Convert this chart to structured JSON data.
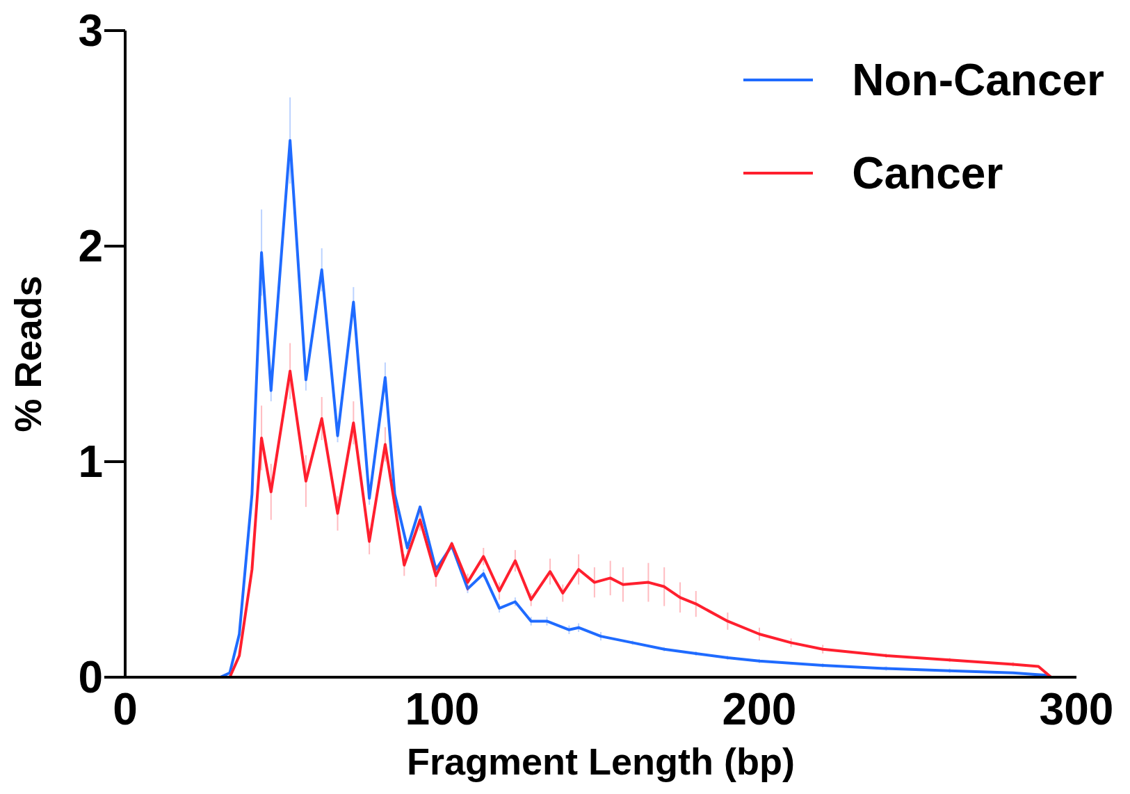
{
  "chart_data": {
    "type": "line",
    "xlabel": "Fragment Length (bp)",
    "ylabel": "% Reads",
    "xlim": [
      0,
      300
    ],
    "xticks": [
      0,
      100,
      200,
      300
    ],
    "ylim": [
      0,
      3
    ],
    "yticks": [
      0,
      1,
      2,
      3
    ],
    "grid": false,
    "legend": "top right",
    "marker": "none",
    "line_style": "solid",
    "series": [
      {
        "name": "Non-Cancer",
        "color": "#1f6bff",
        "x": [
          30,
          33,
          36,
          40,
          43,
          46,
          52,
          57,
          62,
          67,
          72,
          77,
          82,
          85,
          89,
          93,
          98,
          103,
          108,
          113,
          118,
          123,
          128,
          133,
          140,
          143,
          150,
          160,
          170,
          180,
          190,
          200,
          220,
          240,
          260,
          280,
          290,
          292
        ],
        "values": [
          0,
          0.02,
          0.2,
          0.85,
          1.97,
          1.33,
          2.49,
          1.38,
          1.89,
          1.12,
          1.74,
          0.83,
          1.39,
          0.85,
          0.6,
          0.79,
          0.5,
          0.61,
          0.41,
          0.48,
          0.32,
          0.35,
          0.26,
          0.26,
          0.22,
          0.23,
          0.19,
          0.16,
          0.13,
          0.11,
          0.09,
          0.075,
          0.055,
          0.04,
          0.03,
          0.02,
          0.01,
          0
        ],
        "errors": [
          null,
          null,
          null,
          null,
          0.2,
          0.05,
          0.2,
          0.05,
          0.1,
          0.03,
          0.07,
          0.03,
          0.07,
          0.03,
          0.02,
          null,
          0.02,
          0.02,
          0.02,
          0.02,
          0.02,
          0.02,
          0.02,
          0.02,
          0.02,
          0.02,
          0.02,
          0.01,
          0.01,
          0.01,
          0.01,
          0.01,
          0.01,
          0.01,
          0.01,
          null,
          null,
          null
        ]
      },
      {
        "name": "Cancer",
        "color": "#ff1f2e",
        "x": [
          30,
          33,
          36,
          40,
          43,
          46,
          52,
          57,
          62,
          67,
          72,
          77,
          82,
          88,
          93,
          98,
          103,
          108,
          113,
          118,
          123,
          128,
          134,
          138,
          143,
          148,
          153,
          157,
          165,
          170,
          175,
          180,
          190,
          200,
          210,
          220,
          240,
          260,
          280,
          288,
          292
        ],
        "values": [
          0,
          0,
          0.1,
          0.5,
          1.11,
          0.86,
          1.42,
          0.91,
          1.2,
          0.76,
          1.18,
          0.63,
          1.08,
          0.52,
          0.73,
          0.47,
          0.62,
          0.44,
          0.56,
          0.4,
          0.54,
          0.36,
          0.49,
          0.39,
          0.5,
          0.44,
          0.46,
          0.43,
          0.44,
          0.42,
          0.37,
          0.34,
          0.26,
          0.2,
          0.16,
          0.13,
          0.1,
          0.08,
          0.06,
          0.05,
          0
        ],
        "errors": [
          null,
          null,
          null,
          null,
          0.15,
          0.13,
          0.13,
          0.12,
          0.1,
          0.08,
          0.1,
          0.06,
          0.08,
          0.05,
          0.05,
          0.05,
          null,
          0.04,
          0.04,
          0.04,
          0.05,
          0.03,
          0.06,
          0.04,
          0.07,
          0.07,
          0.08,
          0.08,
          0.09,
          0.09,
          0.07,
          0.06,
          0.04,
          0.03,
          0.02,
          0.02,
          0.01,
          0.01,
          0.01,
          null,
          null
        ]
      }
    ]
  }
}
